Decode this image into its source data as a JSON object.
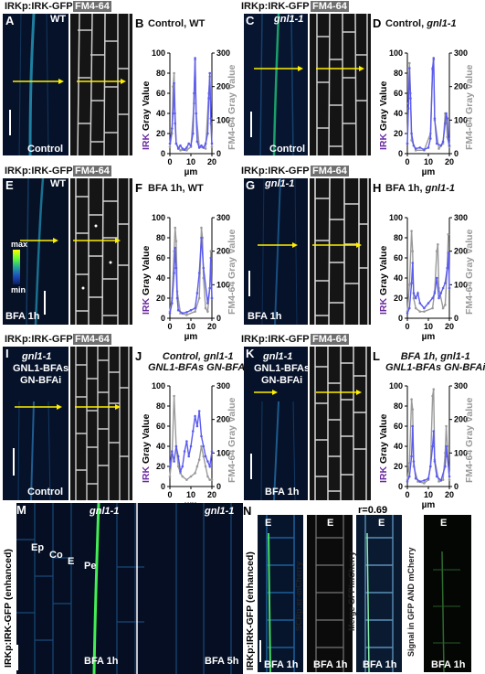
{
  "headers": {
    "irk": "IRKp:IRK-GFP",
    "fm": "FM4-64",
    "irk_enhanced": "IRKp:IRK-GFP (enhanced)",
    "scr": "SCRp:er-mCherry",
    "merge": "Merge GFP/mCherry",
    "signal": "Signal in GFP AND mCherry"
  },
  "panels": {
    "A": {
      "letter": "A",
      "genotype": "WT",
      "condition": "Control"
    },
    "C": {
      "letter": "C",
      "genotype": "gnl1-1",
      "condition": "Control"
    },
    "E": {
      "letter": "E",
      "genotype": "WT",
      "condition": "BFA 1h",
      "cbar_max": "max",
      "cbar_min": "min"
    },
    "G": {
      "letter": "G",
      "genotype": "gnl1-1",
      "condition": "BFA 1h"
    },
    "I": {
      "letter": "I",
      "genotype": "gnl1-1",
      "genotype2": "GNL1-BFAs",
      "genotype3": "GN-BFAi",
      "condition": "Control"
    },
    "K": {
      "letter": "K",
      "genotype": "gnl1-1",
      "genotype2": "GNL1-BFAs",
      "genotype3": "GN-BFAi",
      "condition": "BFA 1h"
    },
    "M": {
      "letter": "M",
      "genotype": "gnl1-1",
      "genotype_right": "gnl1-1",
      "condition_left": "BFA 1h",
      "condition_right": "BFA 5h",
      "ep": "Ep",
      "co": "Co",
      "e": "E",
      "pe": "Pe"
    },
    "N": {
      "letter": "N",
      "e": "E",
      "r": "r=0.69",
      "condition": "BFA 1h"
    }
  },
  "chart_data": [
    {
      "id": "B",
      "type": "line",
      "title": "Control, WT",
      "title2": "",
      "xlabel": "µm",
      "ylabel_left": "IRK Gray Value",
      "ylabel_left_prefix": "IRK",
      "ylabel_left_suffix": " Gray Value",
      "ylabel_right": "FM4-64 Gray Value",
      "ylim_left": [
        0,
        100
      ],
      "ylim_right": [
        0,
        300
      ],
      "xlim": [
        0,
        20
      ],
      "yticks_left": [
        "0",
        "20",
        "40",
        "60",
        "80",
        "100"
      ],
      "yticks_right": [
        "0",
        "100",
        "200",
        "300"
      ],
      "xticks": [
        "0",
        "10",
        "20"
      ],
      "tick_vals_x": [
        0,
        10,
        20
      ],
      "tick_vals_l": [
        0,
        20,
        40,
        60,
        80,
        100
      ],
      "tick_vals_r": [
        0,
        100,
        200,
        300
      ],
      "series": [
        {
          "name": "IRK",
          "axis": "left",
          "color": "#5b5bf0",
          "x": [
            0,
            1,
            1.5,
            2,
            2.5,
            3,
            4,
            5,
            6,
            7,
            8,
            9,
            10,
            11,
            11.5,
            12,
            12.5,
            13,
            14,
            15,
            16,
            17,
            18,
            18.5,
            19,
            19.5,
            20
          ],
          "y": [
            10,
            25,
            40,
            70,
            30,
            10,
            5,
            8,
            5,
            4,
            6,
            10,
            8,
            20,
            60,
            95,
            40,
            12,
            6,
            8,
            6,
            10,
            20,
            55,
            80,
            35,
            10
          ]
        },
        {
          "name": "FM4-64",
          "axis": "right",
          "color": "#9a9a9a",
          "x": [
            0,
            1,
            1.5,
            2,
            2.5,
            3,
            5,
            8,
            10,
            11.5,
            12,
            12.5,
            14,
            17,
            18.5,
            19,
            19.5,
            20
          ],
          "y": [
            20,
            60,
            200,
            240,
            120,
            30,
            10,
            10,
            20,
            150,
            280,
            120,
            20,
            15,
            180,
            230,
            90,
            20
          ]
        }
      ]
    },
    {
      "id": "D",
      "type": "line",
      "title": "Control,",
      "title2": "gnl1-1",
      "xlabel": "µm",
      "ylabel_left": "IRK Gray Value",
      "ylabel_left_prefix": "IRK",
      "ylabel_left_suffix": " Gray Value",
      "ylabel_right": "FM4-64 Gray Value",
      "ylim_left": [
        0,
        100
      ],
      "ylim_right": [
        0,
        300
      ],
      "xlim": [
        0,
        20
      ],
      "yticks_left": [
        "0",
        "20",
        "40",
        "60",
        "80",
        "100"
      ],
      "yticks_right": [
        "0",
        "100",
        "200",
        "300"
      ],
      "xticks": [
        "0",
        "10",
        "20"
      ],
      "tick_vals_x": [
        0,
        10,
        20
      ],
      "tick_vals_l": [
        0,
        20,
        40,
        60,
        80,
        100
      ],
      "tick_vals_r": [
        0,
        100,
        200,
        300
      ],
      "series": [
        {
          "name": "IRK",
          "axis": "left",
          "color": "#5b5bf0",
          "x": [
            0,
            0.5,
            1,
            1.5,
            2,
            3,
            4,
            6,
            8,
            10,
            11,
            12,
            12.5,
            13,
            14,
            16,
            17,
            18,
            18.5,
            19,
            19.5,
            20
          ],
          "y": [
            10,
            45,
            85,
            55,
            20,
            8,
            5,
            6,
            4,
            6,
            15,
            85,
            95,
            35,
            10,
            8,
            12,
            30,
            40,
            35,
            15,
            8
          ]
        },
        {
          "name": "FM4-64",
          "axis": "right",
          "color": "#9a9a9a",
          "x": [
            0,
            0.5,
            1,
            1.5,
            2,
            4,
            8,
            11,
            12,
            12.5,
            13,
            15,
            17,
            18,
            18.5,
            19,
            20
          ],
          "y": [
            30,
            150,
            270,
            180,
            40,
            10,
            10,
            60,
            250,
            280,
            100,
            15,
            30,
            120,
            110,
            50,
            20
          ]
        }
      ]
    },
    {
      "id": "F",
      "type": "line",
      "title": "BFA 1h, WT",
      "title2": "",
      "xlabel": "µm",
      "ylabel_left": "IRK Gray Value",
      "ylabel_left_prefix": "IRK",
      "ylabel_left_suffix": " Gray Value",
      "ylabel_right": "FM4-64 Gray Value",
      "ylim_left": [
        0,
        100
      ],
      "ylim_right": [
        0,
        300
      ],
      "xlim": [
        0,
        20
      ],
      "yticks_left": [
        "0",
        "20",
        "40",
        "60",
        "80",
        "100"
      ],
      "yticks_right": [
        "0",
        "100",
        "200",
        "300"
      ],
      "xticks": [
        "0",
        "10",
        "20"
      ],
      "tick_vals_x": [
        0,
        10,
        20
      ],
      "tick_vals_l": [
        0,
        20,
        40,
        60,
        80,
        100
      ],
      "tick_vals_r": [
        0,
        100,
        200,
        300
      ],
      "series": [
        {
          "name": "IRK",
          "axis": "left",
          "color": "#5b5bf0",
          "x": [
            0,
            1,
            2,
            2.5,
            3,
            3.5,
            4,
            6,
            8,
            10,
            12,
            13,
            14,
            15,
            16,
            18,
            19,
            19.5,
            20
          ],
          "y": [
            5,
            15,
            45,
            70,
            50,
            20,
            8,
            5,
            6,
            8,
            10,
            25,
            45,
            80,
            50,
            15,
            30,
            60,
            20
          ]
        },
        {
          "name": "FM4-64",
          "axis": "right",
          "color": "#9a9a9a",
          "x": [
            0,
            1,
            2,
            2.5,
            3,
            3.5,
            5,
            8,
            12,
            14,
            15,
            15.5,
            16,
            17,
            18,
            19,
            19.5,
            20
          ],
          "y": [
            20,
            60,
            200,
            270,
            230,
            80,
            15,
            10,
            20,
            60,
            270,
            240,
            120,
            30,
            20,
            90,
            200,
            60
          ]
        }
      ]
    },
    {
      "id": "H",
      "type": "line",
      "title": "BFA 1h,",
      "title2": "gnl1-1",
      "xlabel": "µm",
      "ylabel_left": "IRK Gray Value",
      "ylabel_left_prefix": "IRK",
      "ylabel_left_suffix": " Gray Value",
      "ylabel_right": "FM4-64 Gray Value",
      "ylim_left": [
        0,
        100
      ],
      "ylim_right": [
        0,
        300
      ],
      "xlim": [
        0,
        20
      ],
      "yticks_left": [
        "0",
        "20",
        "40",
        "60",
        "80",
        "100"
      ],
      "yticks_right": [
        "0",
        "100",
        "200",
        "300"
      ],
      "xticks": [
        "0",
        "10",
        "20"
      ],
      "tick_vals_x": [
        0,
        10,
        20
      ],
      "tick_vals_l": [
        0,
        20,
        40,
        60,
        80,
        100
      ],
      "tick_vals_r": [
        0,
        100,
        200,
        300
      ],
      "series": [
        {
          "name": "IRK",
          "axis": "left",
          "color": "#5b5bf0",
          "x": [
            0,
            1,
            2,
            2.5,
            3,
            4,
            5,
            6,
            8,
            10,
            12,
            13,
            14,
            15,
            16,
            17,
            18,
            19,
            19.5,
            20
          ],
          "y": [
            5,
            10,
            35,
            55,
            25,
            20,
            25,
            15,
            10,
            15,
            20,
            25,
            40,
            20,
            25,
            30,
            35,
            50,
            65,
            30
          ]
        },
        {
          "name": "FM4-64",
          "axis": "right",
          "color": "#9a9a9a",
          "x": [
            0,
            1,
            2,
            2.5,
            3,
            4,
            6,
            8,
            12,
            13,
            14,
            14.5,
            15,
            17,
            18,
            19,
            19.5,
            20
          ],
          "y": [
            20,
            100,
            260,
            200,
            60,
            30,
            20,
            20,
            30,
            80,
            200,
            220,
            90,
            30,
            40,
            150,
            250,
            90
          ]
        }
      ]
    },
    {
      "id": "J",
      "type": "line",
      "title": "Control, gnl1-1",
      "title2": "GNL1-BFAs GN-BFAi",
      "xlabel": "µm",
      "ylabel_left": "IRK Gray Value",
      "ylabel_left_prefix": "IRK",
      "ylabel_left_suffix": " Gray Value",
      "ylabel_right": "FM4-64 Gray Value",
      "ylim_left": [
        0,
        100
      ],
      "ylim_right": [
        0,
        300
      ],
      "xlim": [
        0,
        20
      ],
      "yticks_left": [
        "0",
        "20",
        "40",
        "60",
        "80",
        "100"
      ],
      "yticks_right": [
        "0",
        "100",
        "200",
        "300"
      ],
      "xticks": [
        "0",
        "10",
        "20"
      ],
      "tick_vals_x": [
        0,
        10,
        20
      ],
      "tick_vals_l": [
        0,
        20,
        40,
        60,
        80,
        100
      ],
      "tick_vals_r": [
        0,
        100,
        200,
        300
      ],
      "series": [
        {
          "name": "IRK",
          "axis": "left",
          "color": "#5b5bf0",
          "x": [
            0,
            1,
            2,
            3,
            4,
            5,
            6,
            7,
            8,
            9,
            10,
            11,
            12,
            13,
            14,
            15,
            16,
            17,
            18,
            19,
            20
          ],
          "y": [
            20,
            35,
            25,
            40,
            30,
            15,
            20,
            35,
            45,
            30,
            40,
            55,
            70,
            60,
            75,
            50,
            40,
            30,
            25,
            20,
            35
          ]
        },
        {
          "name": "FM4-64",
          "axis": "right",
          "color": "#9a9a9a",
          "x": [
            0,
            1,
            2,
            3,
            4,
            5,
            6,
            8,
            10,
            12,
            13,
            14,
            15,
            16,
            17,
            18,
            19,
            20
          ],
          "y": [
            30,
            90,
            270,
            120,
            60,
            40,
            30,
            20,
            30,
            40,
            60,
            80,
            120,
            90,
            60,
            30,
            20,
            20
          ]
        }
      ]
    },
    {
      "id": "L",
      "type": "line",
      "title": "BFA 1h, gnl1-1",
      "title2": "GNL1-BFAs GN-BFAi",
      "xlabel": "µm",
      "ylabel_left": "IRK Gray Value",
      "ylabel_left_prefix": "IRK",
      "ylabel_left_suffix": " Gray Value",
      "ylabel_right": "FM4-64 Gray Value",
      "ylim_left": [
        0,
        100
      ],
      "ylim_right": [
        0,
        300
      ],
      "xlim": [
        0,
        20
      ],
      "yticks_left": [
        "0",
        "20",
        "40",
        "60",
        "80",
        "100"
      ],
      "yticks_right": [
        "0",
        "100",
        "200",
        "300"
      ],
      "xticks": [
        "0",
        "10",
        "20"
      ],
      "tick_vals_x": [
        0,
        10,
        20
      ],
      "tick_vals_l": [
        0,
        20,
        40,
        60,
        80,
        100
      ],
      "tick_vals_r": [
        0,
        100,
        200,
        300
      ],
      "series": [
        {
          "name": "IRK",
          "axis": "left",
          "color": "#5b5bf0",
          "x": [
            0,
            1,
            2,
            2.5,
            3,
            4,
            6,
            8,
            10,
            11,
            12,
            12.5,
            13,
            14,
            16,
            18,
            18.5,
            19,
            20
          ],
          "y": [
            5,
            10,
            30,
            60,
            25,
            8,
            5,
            6,
            8,
            20,
            40,
            55,
            25,
            10,
            6,
            20,
            40,
            30,
            10
          ]
        },
        {
          "name": "FM4-64",
          "axis": "right",
          "color": "#9a9a9a",
          "x": [
            0,
            1,
            2,
            2.5,
            3,
            5,
            8,
            10,
            11,
            12,
            12.5,
            13,
            15,
            17,
            18,
            18.5,
            19,
            20
          ],
          "y": [
            20,
            70,
            260,
            230,
            60,
            15,
            10,
            20,
            60,
            270,
            290,
            80,
            15,
            20,
            100,
            180,
            120,
            20
          ]
        }
      ]
    }
  ]
}
